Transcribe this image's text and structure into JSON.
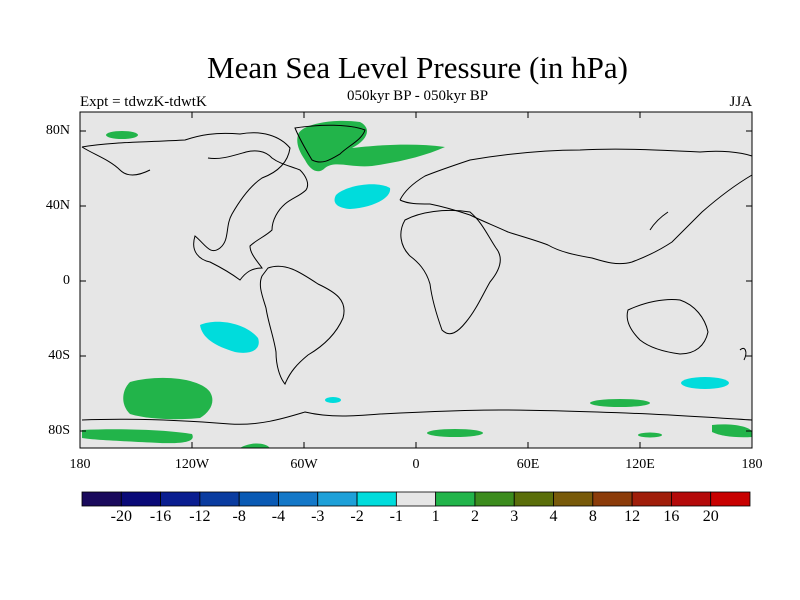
{
  "title": "Mean Sea Level Pressure (in hPa)",
  "subtitle": "050kyr BP - 050kyr BP",
  "experiment": "Expt = tdwzK-tdwtK",
  "season": "JJA",
  "lat_labels": [
    "80N",
    "40N",
    "0",
    "40S",
    "80S"
  ],
  "lon_labels": [
    "180",
    "120W",
    "60W",
    "0",
    "60E",
    "120E",
    "180"
  ],
  "colorbar": {
    "labels": [
      "-20",
      "-16",
      "-12",
      "-8",
      "-4",
      "-3",
      "-2",
      "-1",
      "1",
      "2",
      "3",
      "4",
      "8",
      "12",
      "16",
      "20"
    ],
    "colors": [
      "#1a0a5c",
      "#0a0a78",
      "#0a1e90",
      "#0a3ca0",
      "#0a5ab4",
      "#1478c8",
      "#1ea0d8",
      "#00dcdc",
      "#e6e6e6",
      "#22b44a",
      "#3c8c1e",
      "#5a6e0a",
      "#785a0a",
      "#8c3c0a",
      "#a01e0a",
      "#b40a0a",
      "#c80000"
    ]
  },
  "map": {
    "background": "#e6e6e6",
    "positive_color": "#22b44a",
    "negative_color": "#00dcdc"
  }
}
